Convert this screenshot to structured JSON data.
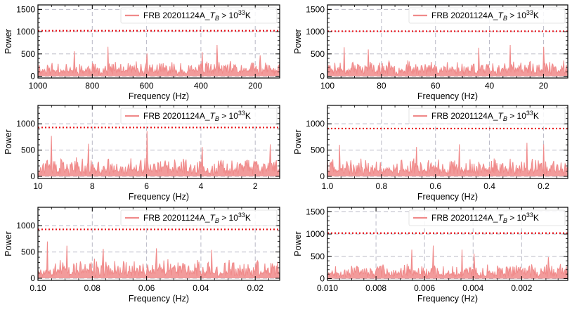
{
  "figure": {
    "panel_count": 6,
    "colors": {
      "signal": "#f08a8a",
      "threshold": "#e8141b",
      "grid": "#b9b9c6",
      "axes": "#000000"
    }
  },
  "chart_data": [
    {
      "type": "line",
      "title": "",
      "xlabel": "Frequency (Hz)",
      "ylabel": "Power",
      "xlim": [
        1000,
        110
      ],
      "ylim": [
        -40,
        1600
      ],
      "xticks": [
        1000,
        800,
        600,
        400,
        200
      ],
      "xtick_labels": [
        "1000",
        "800",
        "600",
        "400",
        "200"
      ],
      "yticks": [
        0,
        500,
        1000,
        1500
      ],
      "ytick_labels": [
        "0",
        "500",
        "1000",
        "1500"
      ],
      "grid": "dashed, at tick positions",
      "legend": {
        "placement": "top-right",
        "label_prefix": "FRB 20201124A_",
        "label_var": "T",
        "label_sub": "B",
        "label_mid": " > 10",
        "label_sup": "33",
        "label_suffix": "K"
      },
      "threshold": 1020,
      "series": [
        {
          "name": "FRB 20201124A_T_B > 10^33 K",
          "n_points": 360,
          "baseline": 120,
          "spread": 230,
          "spikes": [
            [
              0.15,
              560
            ],
            [
              0.29,
              660
            ],
            [
              0.45,
              510
            ],
            [
              0.68,
              540
            ],
            [
              0.74,
              700
            ],
            [
              0.92,
              470
            ]
          ],
          "seed": 11
        }
      ]
    },
    {
      "type": "line",
      "title": "",
      "xlabel": "Frequency (Hz)",
      "ylabel": "Power",
      "xlim": [
        100,
        11
      ],
      "ylim": [
        -40,
        1600
      ],
      "xticks": [
        100,
        80,
        60,
        40,
        20
      ],
      "xtick_labels": [
        "100",
        "80",
        "60",
        "40",
        "20"
      ],
      "yticks": [
        0,
        500,
        1000,
        1500
      ],
      "ytick_labels": [
        "0",
        "500",
        "1000",
        "1500"
      ],
      "grid": "dashed, at tick positions",
      "legend": {
        "placement": "top-right",
        "label_prefix": "FRB 20201124A_",
        "label_var": "T",
        "label_sub": "B",
        "label_mid": " > 10",
        "label_sup": "33",
        "label_suffix": "K"
      },
      "threshold": 1010,
      "series": [
        {
          "name": "FRB 20201124A_T_B > 10^33 K",
          "n_points": 360,
          "baseline": 130,
          "spread": 240,
          "spikes": [
            [
              0.07,
              650
            ],
            [
              0.17,
              600
            ],
            [
              0.63,
              640
            ],
            [
              0.76,
              700
            ],
            [
              0.9,
              660
            ]
          ],
          "seed": 23
        }
      ]
    },
    {
      "type": "line",
      "title": "",
      "xlabel": "Frequency (Hz)",
      "ylabel": "Power",
      "xlim": [
        10,
        1.1
      ],
      "ylim": [
        -40,
        1350
      ],
      "xticks": [
        10,
        8,
        6,
        4,
        2
      ],
      "xtick_labels": [
        "10",
        "8",
        "6",
        "4",
        "2"
      ],
      "yticks": [
        0,
        500,
        1000
      ],
      "ytick_labels": [
        "0",
        "500",
        "1000"
      ],
      "grid": "dashed, at tick positions",
      "legend": {
        "placement": "top-right",
        "label_prefix": "FRB 20201124A_",
        "label_var": "T",
        "label_sub": "B",
        "label_mid": " > 10",
        "label_sup": "33",
        "label_suffix": "K"
      },
      "threshold": 930,
      "series": [
        {
          "name": "FRB 20201124A_T_B > 10^33 K",
          "n_points": 360,
          "baseline": 110,
          "spread": 260,
          "spikes": [
            [
              0.055,
              770
            ],
            [
              0.21,
              620
            ],
            [
              0.45,
              860
            ],
            [
              0.68,
              560
            ],
            [
              0.96,
              610
            ]
          ],
          "seed": 37
        }
      ]
    },
    {
      "type": "line",
      "title": "",
      "xlabel": "Frequency (Hz)",
      "ylabel": "Power",
      "xlim": [
        1.0,
        0.11
      ],
      "ylim": [
        -40,
        1350
      ],
      "xticks": [
        1.0,
        0.8,
        0.6,
        0.4,
        0.2
      ],
      "xtick_labels": [
        "1.0",
        "0.8",
        "0.6",
        "0.4",
        "0.2"
      ],
      "yticks": [
        0,
        500,
        1000
      ],
      "ytick_labels": [
        "0",
        "500",
        "1000"
      ],
      "grid": "dashed, at tick positions",
      "legend": {
        "placement": "top-right",
        "label_prefix": "FRB 20201124A_",
        "label_var": "T",
        "label_sub": "B",
        "label_mid": " > 10",
        "label_sup": "33",
        "label_suffix": "K"
      },
      "threshold": 910,
      "series": [
        {
          "name": "FRB 20201124A_T_B > 10^33 K",
          "n_points": 360,
          "baseline": 110,
          "spread": 250,
          "spikes": [
            [
              0.05,
              600
            ],
            [
              0.37,
              560
            ],
            [
              0.55,
              610
            ],
            [
              0.83,
              640
            ],
            [
              0.9,
              610
            ]
          ],
          "seed": 41
        }
      ]
    },
    {
      "type": "line",
      "title": "",
      "xlabel": "Frequency (Hz)",
      "ylabel": "Power",
      "xlim": [
        0.1,
        0.011
      ],
      "ylim": [
        -40,
        1350
      ],
      "xticks": [
        0.1,
        0.08,
        0.06,
        0.04,
        0.02
      ],
      "xtick_labels": [
        "0.10",
        "0.08",
        "0.06",
        "0.04",
        "0.02"
      ],
      "yticks": [
        0,
        500,
        1000
      ],
      "ytick_labels": [
        "0",
        "500",
        "1000"
      ],
      "grid": "dashed, at tick positions",
      "legend": {
        "placement": "top-right",
        "label_prefix": "FRB 20201124A_",
        "label_var": "T",
        "label_sub": "B",
        "label_mid": " > 10",
        "label_sup": "33",
        "label_suffix": "K"
      },
      "threshold": 930,
      "series": [
        {
          "name": "FRB 20201124A_T_B > 10^33 K",
          "n_points": 360,
          "baseline": 120,
          "spread": 270,
          "spikes": [
            [
              0.04,
              700
            ],
            [
              0.12,
              620
            ],
            [
              0.27,
              560
            ],
            [
              0.49,
              570
            ],
            [
              0.72,
              540
            ]
          ],
          "seed": 53
        }
      ]
    },
    {
      "type": "line",
      "title": "",
      "xlabel": "Frequency (Hz)",
      "ylabel": "Power",
      "xlim": [
        0.01,
        0.0001
      ],
      "ylim": [
        -40,
        1600
      ],
      "xticks": [
        0.01,
        0.008,
        0.006,
        0.004,
        0.002
      ],
      "xtick_labels": [
        "0.010",
        "0.008",
        "0.006",
        "0.004",
        "0.002"
      ],
      "yticks": [
        0,
        500,
        1000,
        1500
      ],
      "ytick_labels": [
        "0",
        "500",
        "1000",
        "1500"
      ],
      "grid": "dashed, at tick positions",
      "legend": {
        "placement": "top-right",
        "label_prefix": "FRB 20201124A_",
        "label_var": "T",
        "label_sub": "B",
        "label_mid": " > 10",
        "label_sup": "33",
        "label_suffix": "K"
      },
      "threshold": 1020,
      "series": [
        {
          "name": "FRB 20201124A_T_B > 10^33 K",
          "n_points": 360,
          "baseline": 110,
          "spread": 240,
          "spikes": [
            [
              0.35,
              650
            ],
            [
              0.44,
              740
            ],
            [
              0.56,
              650
            ],
            [
              0.61,
              560
            ],
            [
              0.92,
              480
            ]
          ],
          "seed": 67
        }
      ]
    }
  ]
}
